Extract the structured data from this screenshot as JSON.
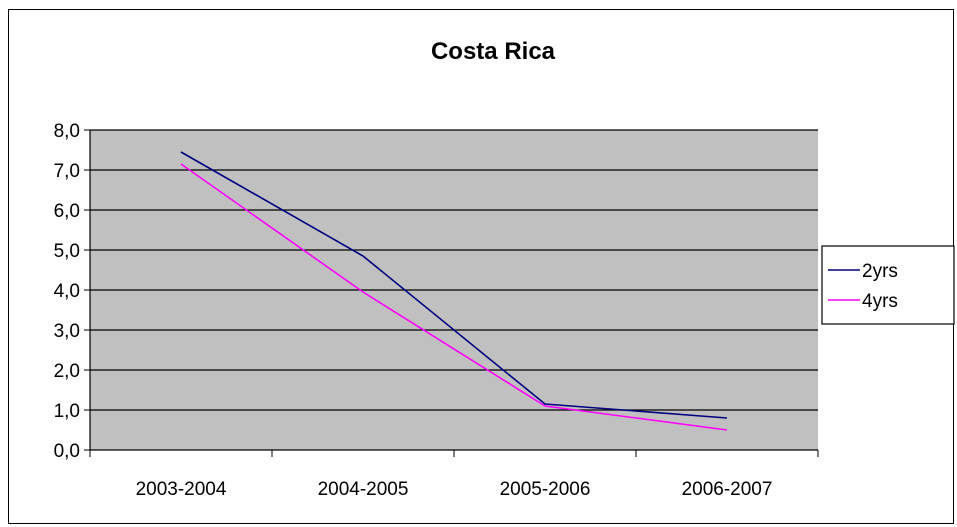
{
  "chart_data": {
    "type": "line",
    "title": "Costa Rica",
    "xlabel": "",
    "ylabel": "",
    "categories": [
      "2003-2004",
      "2004-2005",
      "2005-2006",
      "2006-2007"
    ],
    "ylim": [
      0,
      8
    ],
    "y_ticks": [
      "0,0",
      "1,0",
      "2,0",
      "3,0",
      "4,0",
      "5,0",
      "6,0",
      "7,0",
      "8,0"
    ],
    "grid": true,
    "legend": "right",
    "plot_background": "#c0c0c0",
    "series": [
      {
        "name": "2yrs",
        "color": "#000080",
        "values": [
          7.45,
          4.85,
          1.15,
          0.8
        ]
      },
      {
        "name": "4yrs",
        "color": "#ff00ff",
        "values": [
          7.15,
          3.95,
          1.1,
          0.5
        ]
      }
    ]
  }
}
